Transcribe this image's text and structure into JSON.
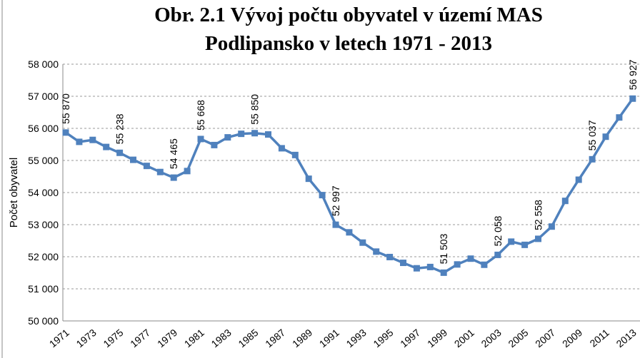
{
  "chart_data": {
    "type": "line",
    "title": [
      "Obr. 2.1 Vývoj počtu obyvatel v území MAS",
      "Podlipansko v letech 1971 - 2013"
    ],
    "y_label": "Počet obyvatel",
    "categories": [
      "1971",
      null,
      "1973",
      null,
      "1975",
      null,
      "1977",
      null,
      "1979",
      null,
      "1981",
      null,
      "1983",
      null,
      "1985",
      null,
      "1987",
      null,
      "1989",
      null,
      "1991",
      null,
      "1993",
      null,
      "1995",
      null,
      "1997",
      null,
      "1999",
      null,
      "2001",
      null,
      "2003",
      null,
      "2005",
      null,
      "2007",
      null,
      "2009",
      null,
      "2011",
      null,
      "2013"
    ],
    "series": [
      {
        "name": "Počet obyvatel",
        "color": "#4f81bd",
        "values": [
          55870,
          55580,
          55640,
          55420,
          55238,
          55020,
          54830,
          54640,
          54465,
          54670,
          55668,
          55480,
          55720,
          55830,
          55850,
          55810,
          55380,
          55170,
          54430,
          53920,
          52997,
          52760,
          52440,
          52160,
          51990,
          51810,
          51640,
          51680,
          51503,
          51760,
          51940,
          51750,
          52058,
          52470,
          52370,
          52558,
          52940,
          53740,
          54400,
          55037,
          55740,
          56340,
          56927
        ],
        "value_labels": [
          "55 870",
          null,
          null,
          null,
          "55 238",
          null,
          null,
          null,
          "54 465",
          null,
          "55 668",
          null,
          null,
          null,
          "55 850",
          null,
          null,
          null,
          null,
          null,
          "52 997",
          null,
          null,
          null,
          null,
          null,
          null,
          null,
          "51 503",
          null,
          null,
          null,
          "52 058",
          null,
          null,
          "52 558",
          null,
          null,
          null,
          "55 037",
          null,
          null,
          "56 927"
        ]
      }
    ],
    "ylim": [
      50000,
      58000
    ],
    "yticks": [
      {
        "value": 50000,
        "label": "50 000"
      },
      {
        "value": 51000,
        "label": "51 000"
      },
      {
        "value": 52000,
        "label": "52 000"
      },
      {
        "value": 53000,
        "label": "53 000"
      },
      {
        "value": 54000,
        "label": "54 000"
      },
      {
        "value": 55000,
        "label": "55 000"
      },
      {
        "value": 56000,
        "label": "56 000"
      },
      {
        "value": 57000,
        "label": "57 000"
      },
      {
        "value": 58000,
        "label": "58 000"
      }
    ],
    "grid": true
  }
}
